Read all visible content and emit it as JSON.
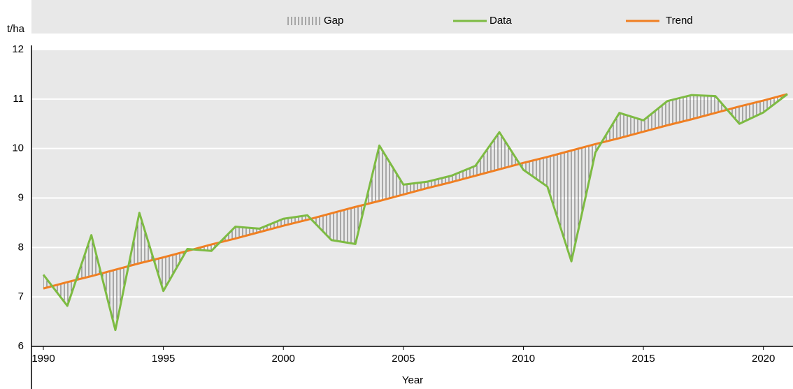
{
  "chart_data": {
    "type": "line",
    "y_label": "t/ha",
    "x_label": "Year",
    "gap_label": "Gap",
    "x": [
      1990,
      1991,
      1992,
      1993,
      1994,
      1995,
      1996,
      1997,
      1998,
      1999,
      2000,
      2001,
      2002,
      2003,
      2004,
      2005,
      2006,
      2007,
      2008,
      2009,
      2010,
      2011,
      2012,
      2013,
      2014,
      2015,
      2016,
      2017,
      2018,
      2019,
      2020,
      2021
    ],
    "series": [
      {
        "name": "Data",
        "color": "#7dbb42",
        "values": [
          7.45,
          6.82,
          8.25,
          6.33,
          8.7,
          7.12,
          7.97,
          7.93,
          8.42,
          8.38,
          8.58,
          8.65,
          8.15,
          8.07,
          10.06,
          9.27,
          9.33,
          9.45,
          9.65,
          10.33,
          9.57,
          9.23,
          7.72,
          9.92,
          10.72,
          10.57,
          10.96,
          11.08,
          11.06,
          10.5,
          10.73,
          11.1
        ]
      },
      {
        "name": "Trend",
        "color": "#f07f22",
        "values": [
          7.17,
          7.3,
          7.42,
          7.55,
          7.68,
          7.8,
          7.93,
          8.06,
          8.18,
          8.31,
          8.44,
          8.56,
          8.69,
          8.82,
          8.94,
          9.07,
          9.2,
          9.32,
          9.45,
          9.58,
          9.71,
          9.83,
          9.96,
          10.09,
          10.21,
          10.34,
          10.47,
          10.59,
          10.72,
          10.85,
          10.97,
          11.1
        ]
      }
    ],
    "xlim": [
      1990,
      2021
    ],
    "xticks": [
      1990,
      1995,
      2000,
      2005,
      2010,
      2015,
      2020
    ],
    "ylim": [
      6,
      12
    ],
    "yticks": [
      6,
      7,
      8,
      9,
      10,
      11,
      12
    ],
    "grid": true,
    "legend": "top"
  }
}
